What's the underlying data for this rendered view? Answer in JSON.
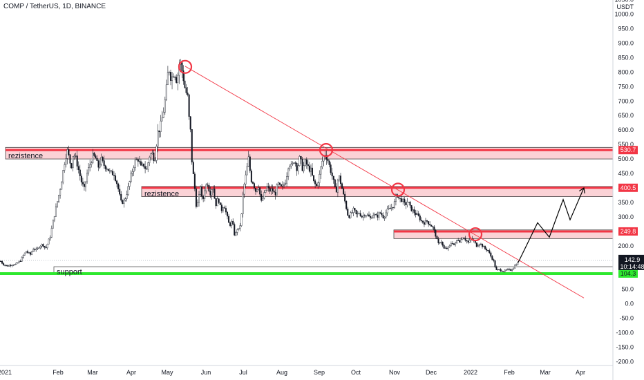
{
  "header": {
    "title": "COMP / TetherUS, 1D, BINANCE"
  },
  "chart_data": {
    "type": "candlestick",
    "quote_currency": "USDT",
    "x_ticks": [
      "2021",
      "Feb",
      "Mar",
      "Apr",
      "May",
      "Jun",
      "Jul",
      "Aug",
      "Sep",
      "Oct",
      "Nov",
      "Dec",
      "2022",
      "Feb",
      "Mar",
      "Apr"
    ],
    "y_ticks": [
      1050.0,
      1000.0,
      950.0,
      900.0,
      850.0,
      800.0,
      750.0,
      700.0,
      650.0,
      600.0,
      550.0,
      500.0,
      450.0,
      400.0,
      350.0,
      300.0,
      250.0,
      200.0,
      150.0,
      100.0,
      50.0,
      0.0,
      -50.0,
      -100.0,
      -150.0,
      -200.0
    ],
    "ylim": [
      -210,
      1060
    ],
    "price_path": [
      [
        0,
        150
      ],
      [
        4,
        138
      ],
      [
        10,
        130
      ],
      [
        18,
        136
      ],
      [
        22,
        135
      ],
      [
        26,
        142
      ],
      [
        30,
        150
      ],
      [
        34,
        168
      ],
      [
        38,
        182
      ],
      [
        41,
        175
      ],
      [
        44,
        170
      ],
      [
        48,
        190
      ],
      [
        53,
        185
      ],
      [
        57,
        200
      ],
      [
        62,
        205
      ],
      [
        66,
        190
      ],
      [
        70,
        215
      ],
      [
        73,
        235
      ],
      [
        76,
        275
      ],
      [
        80,
        320
      ],
      [
        85,
        375
      ],
      [
        88,
        410
      ],
      [
        91,
        455
      ],
      [
        94,
        500
      ],
      [
        97,
        530
      ],
      [
        100,
        505
      ],
      [
        103,
        470
      ],
      [
        106,
        520
      ],
      [
        110,
        500
      ],
      [
        114,
        460
      ],
      [
        118,
        420
      ],
      [
        122,
        395
      ],
      [
        126,
        450
      ],
      [
        130,
        480
      ],
      [
        134,
        510
      ],
      [
        138,
        505
      ],
      [
        142,
        470
      ],
      [
        146,
        500
      ],
      [
        150,
        480
      ],
      [
        155,
        470
      ],
      [
        160,
        450
      ],
      [
        165,
        450
      ],
      [
        170,
        410
      ],
      [
        175,
        350
      ],
      [
        180,
        355
      ],
      [
        185,
        395
      ],
      [
        190,
        445
      ],
      [
        195,
        490
      ],
      [
        200,
        500
      ],
      [
        204,
        470
      ],
      [
        208,
        480
      ],
      [
        212,
        460
      ],
      [
        216,
        510
      ],
      [
        220,
        520
      ],
      [
        224,
        495
      ],
      [
        228,
        590
      ],
      [
        232,
        610
      ],
      [
        236,
        655
      ],
      [
        240,
        720
      ],
      [
        244,
        820
      ],
      [
        248,
        775
      ],
      [
        252,
        805
      ],
      [
        256,
        770
      ],
      [
        260,
        840
      ],
      [
        264,
        800
      ],
      [
        268,
        740
      ],
      [
        272,
        710
      ],
      [
        274,
        625
      ],
      [
        276,
        590
      ],
      [
        278,
        480
      ],
      [
        281,
        420
      ],
      [
        284,
        340
      ],
      [
        287,
        350
      ],
      [
        290,
        410
      ],
      [
        293,
        345
      ],
      [
        296,
        395
      ],
      [
        300,
        420
      ],
      [
        304,
        380
      ],
      [
        308,
        410
      ],
      [
        312,
        340
      ],
      [
        316,
        365
      ],
      [
        320,
        320
      ],
      [
        324,
        345
      ],
      [
        328,
        305
      ],
      [
        332,
        270
      ],
      [
        336,
        285
      ],
      [
        340,
        230
      ],
      [
        343,
        260
      ],
      [
        346,
        255
      ],
      [
        349,
        290
      ],
      [
        352,
        390
      ],
      [
        356,
        445
      ],
      [
        360,
        505
      ],
      [
        363,
        430
      ],
      [
        366,
        420
      ],
      [
        370,
        390
      ],
      [
        374,
        410
      ],
      [
        378,
        350
      ],
      [
        382,
        375
      ],
      [
        386,
        405
      ],
      [
        390,
        390
      ],
      [
        394,
        395
      ],
      [
        398,
        375
      ],
      [
        402,
        415
      ],
      [
        406,
        400
      ],
      [
        410,
        405
      ],
      [
        414,
        430
      ],
      [
        418,
        490
      ],
      [
        422,
        470
      ],
      [
        426,
        500
      ],
      [
        430,
        465
      ],
      [
        434,
        505
      ],
      [
        438,
        465
      ],
      [
        442,
        490
      ],
      [
        446,
        470
      ],
      [
        450,
        460
      ],
      [
        454,
        420
      ],
      [
        458,
        405
      ],
      [
        462,
        440
      ],
      [
        466,
        490
      ],
      [
        470,
        520
      ],
      [
        474,
        500
      ],
      [
        478,
        465
      ],
      [
        482,
        430
      ],
      [
        486,
        380
      ],
      [
        490,
        445
      ],
      [
        494,
        410
      ],
      [
        497,
        375
      ],
      [
        500,
        345
      ],
      [
        504,
        300
      ],
      [
        508,
        310
      ],
      [
        512,
        325
      ],
      [
        516,
        305
      ],
      [
        520,
        315
      ],
      [
        524,
        300
      ],
      [
        528,
        310
      ],
      [
        532,
        305
      ],
      [
        536,
        295
      ],
      [
        540,
        310
      ],
      [
        545,
        300
      ],
      [
        550,
        315
      ],
      [
        555,
        300
      ],
      [
        560,
        320
      ],
      [
        565,
        330
      ],
      [
        570,
        340
      ],
      [
        574,
        380
      ],
      [
        578,
        360
      ],
      [
        582,
        360
      ],
      [
        586,
        340
      ],
      [
        590,
        355
      ],
      [
        594,
        330
      ],
      [
        598,
        320
      ],
      [
        602,
        310
      ],
      [
        606,
        300
      ],
      [
        610,
        285
      ],
      [
        614,
        280
      ],
      [
        618,
        285
      ],
      [
        622,
        275
      ],
      [
        626,
        265
      ],
      [
        630,
        240
      ],
      [
        634,
        205
      ],
      [
        638,
        220
      ],
      [
        642,
        190
      ],
      [
        646,
        190
      ],
      [
        650,
        195
      ],
      [
        654,
        215
      ],
      [
        658,
        200
      ],
      [
        662,
        225
      ],
      [
        666,
        215
      ],
      [
        670,
        235
      ],
      [
        674,
        220
      ],
      [
        678,
        210
      ],
      [
        682,
        225
      ],
      [
        686,
        215
      ],
      [
        690,
        200
      ],
      [
        694,
        210
      ],
      [
        698,
        200
      ],
      [
        702,
        190
      ],
      [
        706,
        185
      ],
      [
        710,
        165
      ],
      [
        714,
        150
      ],
      [
        718,
        115
      ],
      [
        722,
        118
      ],
      [
        726,
        115
      ],
      [
        730,
        112
      ],
      [
        734,
        118
      ],
      [
        738,
        115
      ],
      [
        742,
        122
      ],
      [
        746,
        135
      ],
      [
        750,
        142.9
      ]
    ],
    "projection_path": [
      [
        750,
        142.9
      ],
      [
        778,
        280
      ],
      [
        795,
        230
      ],
      [
        815,
        360
      ],
      [
        825,
        290
      ],
      [
        845,
        400
      ]
    ],
    "trendline": {
      "from": [
        268,
        820
      ],
      "to": [
        845,
        20
      ]
    },
    "zones": [
      {
        "label": "rezistence",
        "range": [
          500,
          540
        ],
        "x_start": 8,
        "line_value": 530.7,
        "tag": "530.7"
      },
      {
        "label": "rezistence",
        "range": [
          370,
          405
        ],
        "x_start": 205,
        "line_value": 400.5,
        "tag": "400.5"
      },
      {
        "label": "",
        "range": [
          225,
          255
        ],
        "x_start": 570,
        "line_value": 249.8,
        "tag": "249.8"
      },
      {
        "label": "support",
        "range": [
          102,
          128
        ],
        "x_start": 78,
        "line_value": 104.3,
        "tag": "104.3"
      }
    ],
    "circles": [
      [
        268,
        818
      ],
      [
        472,
        531
      ],
      [
        576,
        394
      ],
      [
        688,
        240
      ]
    ],
    "current": {
      "price": "142.9",
      "countdown": "10:14:48"
    },
    "colors": {
      "resistance": "#f23645",
      "resistance_fill": "#fbd2d6",
      "support": "#2ee82e",
      "trend": "#f23645",
      "candles": "#131722",
      "tag_text": "#ffffff"
    }
  }
}
